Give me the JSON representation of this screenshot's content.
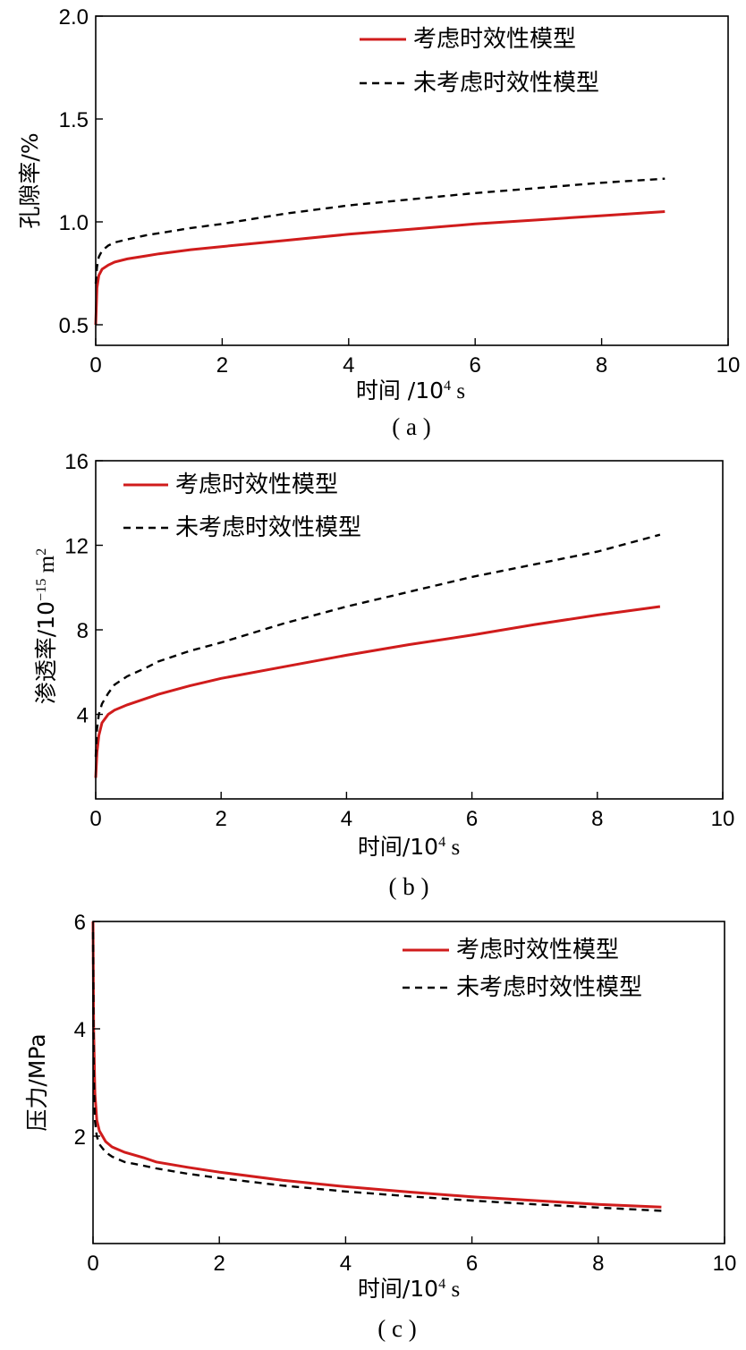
{
  "chart_data": [
    {
      "type": "line",
      "caption": "( a )",
      "xlabel": "时间 /10",
      "xlabel_sup": "4",
      "xlabel_unit": " s",
      "ylabel": "孔隙率/%",
      "xlim": [
        0,
        10
      ],
      "ylim": [
        0.4,
        2.0
      ],
      "xticks": [
        0,
        2,
        4,
        6,
        8,
        10
      ],
      "xtick_labels": [
        "0",
        "2",
        "4",
        "6",
        "8",
        "10"
      ],
      "yticks": [
        0.5,
        1.0,
        1.5,
        2.0
      ],
      "ytick_labels": [
        "0.5",
        "1.0",
        "1.5",
        "2.0"
      ],
      "legend_position": "top-right",
      "series": [
        {
          "name": "考虑时效性模型",
          "style": "solid",
          "color": "#d01c1c",
          "x": [
            0,
            0.02,
            0.05,
            0.1,
            0.2,
            0.3,
            0.5,
            0.8,
            1,
            1.5,
            2,
            3,
            4,
            5,
            6,
            7,
            8,
            9
          ],
          "y": [
            0.5,
            0.68,
            0.74,
            0.77,
            0.79,
            0.805,
            0.82,
            0.835,
            0.845,
            0.865,
            0.88,
            0.91,
            0.94,
            0.965,
            0.99,
            1.01,
            1.03,
            1.05
          ]
        },
        {
          "name": "未考虑时效性模型",
          "style": "dashed",
          "color": "#000000",
          "x": [
            0,
            0.02,
            0.05,
            0.1,
            0.2,
            0.3,
            0.5,
            0.8,
            1,
            1.5,
            2,
            3,
            4,
            5,
            6,
            7,
            8,
            9
          ],
          "y": [
            0.7,
            0.78,
            0.83,
            0.86,
            0.885,
            0.9,
            0.915,
            0.935,
            0.945,
            0.97,
            0.99,
            1.04,
            1.08,
            1.11,
            1.14,
            1.165,
            1.19,
            1.21
          ]
        }
      ]
    },
    {
      "type": "line",
      "caption": "( b )",
      "xlabel": "时间/10",
      "xlabel_sup": "4",
      "xlabel_unit": " s",
      "ylabel": "渗透率/10",
      "ylabel_sup": "−15",
      "ylabel_unit": " m",
      "ylabel_sup2": "2",
      "xlim": [
        0,
        10
      ],
      "ylim": [
        0,
        16
      ],
      "xticks": [
        0,
        2,
        4,
        6,
        8,
        10
      ],
      "xtick_labels": [
        "0",
        "2",
        "4",
        "6",
        "8",
        "10"
      ],
      "yticks": [
        4,
        8,
        12,
        16
      ],
      "ytick_labels": [
        "4",
        "8",
        "12",
        "16"
      ],
      "legend_position": "top-left",
      "series": [
        {
          "name": "考虑时效性模型",
          "style": "solid",
          "color": "#d01c1c",
          "x": [
            0,
            0.02,
            0.05,
            0.1,
            0.2,
            0.3,
            0.5,
            0.8,
            1,
            1.5,
            2,
            3,
            4,
            5,
            6,
            7,
            8,
            9
          ],
          "y": [
            1.0,
            2.2,
            3.0,
            3.6,
            4.0,
            4.2,
            4.45,
            4.75,
            4.95,
            5.35,
            5.7,
            6.25,
            6.8,
            7.3,
            7.75,
            8.25,
            8.7,
            9.1
          ]
        },
        {
          "name": "未考虑时效性模型",
          "style": "dashed",
          "color": "#000000",
          "x": [
            0,
            0.02,
            0.05,
            0.1,
            0.2,
            0.3,
            0.5,
            0.8,
            1,
            1.5,
            2,
            3,
            4,
            5,
            6,
            7,
            8,
            9
          ],
          "y": [
            2.0,
            3.3,
            4.0,
            4.5,
            5.0,
            5.4,
            5.8,
            6.2,
            6.5,
            7.0,
            7.4,
            8.3,
            9.1,
            9.8,
            10.5,
            11.1,
            11.7,
            12.5
          ]
        }
      ]
    },
    {
      "type": "line",
      "caption": "( c )",
      "xlabel": "时间/10",
      "xlabel_sup": "4",
      "xlabel_unit": " s",
      "ylabel": "压力/MPa",
      "xlim": [
        0,
        10
      ],
      "ylim": [
        0,
        6
      ],
      "xticks": [
        0,
        2,
        4,
        6,
        8,
        10
      ],
      "xtick_labels": [
        "0",
        "2",
        "4",
        "6",
        "8",
        "10"
      ],
      "yticks": [
        2,
        4,
        6
      ],
      "ytick_labels": [
        "2",
        "4",
        "6"
      ],
      "legend_position": "top-right",
      "series": [
        {
          "name": "考虑时效性模型",
          "style": "solid",
          "color": "#d01c1c",
          "x": [
            0,
            0.01,
            0.03,
            0.06,
            0.1,
            0.2,
            0.3,
            0.5,
            0.8,
            1,
            1.5,
            2,
            3,
            4,
            5,
            6,
            7,
            8,
            9
          ],
          "y": [
            6.0,
            4.0,
            2.8,
            2.3,
            2.1,
            1.9,
            1.8,
            1.7,
            1.6,
            1.52,
            1.42,
            1.33,
            1.18,
            1.06,
            0.96,
            0.87,
            0.8,
            0.73,
            0.68
          ]
        },
        {
          "name": "未考虑时效性模型",
          "style": "dashed",
          "color": "#000000",
          "x": [
            0,
            0.01,
            0.03,
            0.06,
            0.1,
            0.2,
            0.3,
            0.5,
            0.8,
            1,
            1.5,
            2,
            3,
            4,
            5,
            6,
            7,
            8,
            9
          ],
          "y": [
            5.8,
            3.2,
            2.3,
            2.0,
            1.85,
            1.7,
            1.62,
            1.52,
            1.45,
            1.4,
            1.3,
            1.22,
            1.08,
            0.97,
            0.88,
            0.8,
            0.73,
            0.67,
            0.61
          ]
        }
      ]
    }
  ]
}
